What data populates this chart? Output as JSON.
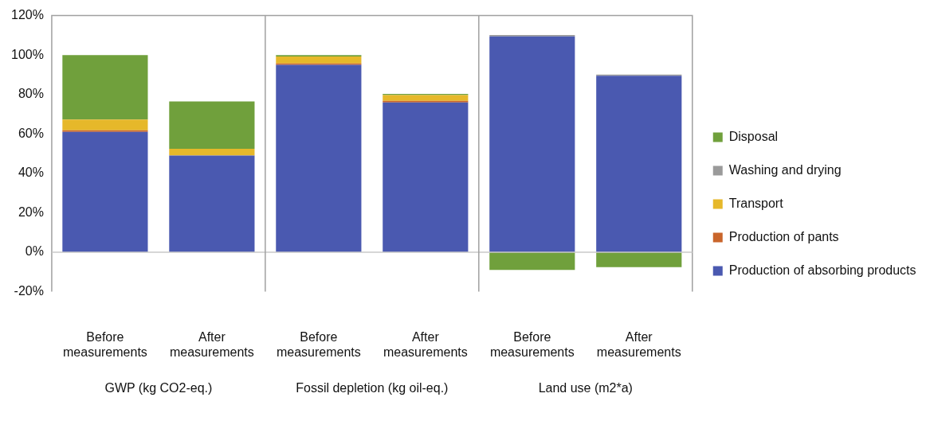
{
  "chart_data": {
    "type": "bar",
    "stacked": true,
    "categories": [
      "Before measurements",
      "After measurements",
      "Before measurements",
      "After measurements",
      "Before measurements",
      "After measurements"
    ],
    "series": [
      {
        "name": "Production of absorbing products",
        "color": "#4a59b0",
        "values": [
          61,
          49,
          95,
          76,
          109.5,
          89.5
        ]
      },
      {
        "name": "Production of pants",
        "color": "#c9652b",
        "values": [
          0.8,
          0,
          0.7,
          0.8,
          0,
          0
        ]
      },
      {
        "name": "Transport",
        "color": "#e6b82a",
        "values": [
          5.5,
          3.5,
          3.6,
          2.9,
          0,
          0
        ]
      },
      {
        "name": "Washing and drying",
        "color": "#9a9a9a",
        "values": [
          0,
          0,
          0,
          0,
          0.7,
          0.6
        ]
      },
      {
        "name": "Disposal",
        "color": "#70a03c",
        "values": [
          32.7,
          24,
          0.7,
          0.6,
          -9,
          -7.6
        ]
      }
    ],
    "ylim": [
      -20,
      120
    ],
    "yticks": [
      {
        "value": -20,
        "label": "-20%"
      },
      {
        "value": 0,
        "label": "0%"
      },
      {
        "value": 20,
        "label": "20%"
      },
      {
        "value": 40,
        "label": "40%"
      },
      {
        "value": 60,
        "label": "60%"
      },
      {
        "value": 80,
        "label": "80%"
      },
      {
        "value": 100,
        "label": "100%"
      },
      {
        "value": 120,
        "label": "120%"
      }
    ],
    "annotations": [
      "GWP (kg CO2-eq.)",
      "Fossil depletion (kg oil-eq.)",
      "Land use (m2*a)"
    ],
    "legend": "right",
    "grid": false
  }
}
